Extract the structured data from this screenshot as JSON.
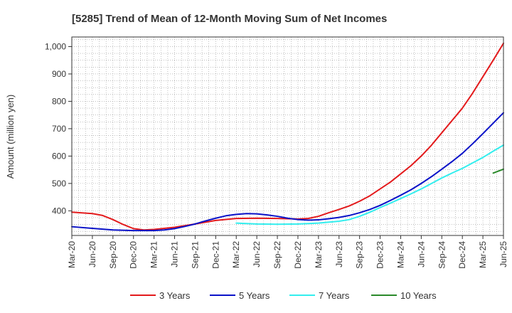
{
  "chart_data": {
    "type": "line",
    "title": "[5285]  Trend of Mean of 12-Month Moving Sum of Net Incomes",
    "xlabel": "",
    "ylabel": "Amount (million yen)",
    "ylim": [
      310,
      1035
    ],
    "yticks": [
      400,
      500,
      600,
      700,
      800,
      900,
      1000
    ],
    "ytick_labels": [
      "400",
      "500",
      "600",
      "700",
      "800",
      "900",
      "1,000"
    ],
    "x_categories": [
      "Mar-20",
      "Jun-20",
      "Sep-20",
      "Dec-20",
      "Mar-21",
      "Jun-21",
      "Sep-21",
      "Dec-21",
      "Mar-22",
      "Jun-22",
      "Sep-22",
      "Dec-22",
      "Mar-23",
      "Jun-23",
      "Sep-23",
      "Dec-23",
      "Mar-24",
      "Jun-24",
      "Sep-24",
      "Dec-24",
      "Mar-25",
      "Jun-25"
    ],
    "grid": true,
    "legend_position": "bottom",
    "series": [
      {
        "name": "3 Years",
        "color": "#e31a1c",
        "points": [
          [
            0,
            395
          ],
          [
            1,
            390
          ],
          [
            1.5,
            383
          ],
          [
            2,
            368
          ],
          [
            2.5,
            350
          ],
          [
            3,
            335
          ],
          [
            3.5,
            330
          ],
          [
            4,
            332
          ],
          [
            5,
            340
          ],
          [
            6,
            352
          ],
          [
            7,
            365
          ],
          [
            8,
            372
          ],
          [
            9,
            373
          ],
          [
            10,
            372
          ],
          [
            11,
            370
          ],
          [
            11.5,
            372
          ],
          [
            12,
            380
          ],
          [
            12.5,
            393
          ],
          [
            13,
            405
          ],
          [
            13.5,
            418
          ],
          [
            14,
            435
          ],
          [
            14.5,
            455
          ],
          [
            15,
            480
          ],
          [
            15.5,
            505
          ],
          [
            16,
            535
          ],
          [
            16.5,
            565
          ],
          [
            17,
            600
          ],
          [
            17.5,
            640
          ],
          [
            18,
            685
          ],
          [
            18.5,
            730
          ],
          [
            19,
            775
          ],
          [
            19.5,
            830
          ],
          [
            20,
            890
          ],
          [
            20.5,
            950
          ],
          [
            21,
            1012
          ]
        ]
      },
      {
        "name": "5 Years",
        "color": "#0a12c8",
        "points": [
          [
            0,
            342
          ],
          [
            1,
            336
          ],
          [
            2,
            330
          ],
          [
            3,
            328
          ],
          [
            4,
            328
          ],
          [
            4.5,
            330
          ],
          [
            5,
            335
          ],
          [
            5.5,
            343
          ],
          [
            6,
            352
          ],
          [
            6.5,
            363
          ],
          [
            7,
            373
          ],
          [
            7.5,
            382
          ],
          [
            8,
            387
          ],
          [
            8.5,
            390
          ],
          [
            9,
            389
          ],
          [
            9.5,
            385
          ],
          [
            10,
            380
          ],
          [
            10.5,
            373
          ],
          [
            11,
            368
          ],
          [
            11.5,
            366
          ],
          [
            12,
            367
          ],
          [
            12.5,
            371
          ],
          [
            13,
            376
          ],
          [
            13.5,
            383
          ],
          [
            14,
            393
          ],
          [
            14.5,
            405
          ],
          [
            15,
            420
          ],
          [
            15.5,
            438
          ],
          [
            16,
            457
          ],
          [
            16.5,
            477
          ],
          [
            17,
            500
          ],
          [
            17.5,
            525
          ],
          [
            18,
            552
          ],
          [
            18.5,
            580
          ],
          [
            19,
            610
          ],
          [
            19.5,
            645
          ],
          [
            20,
            682
          ],
          [
            20.5,
            720
          ],
          [
            21,
            758
          ]
        ]
      },
      {
        "name": "7 Years",
        "color": "#33eeee",
        "points": [
          [
            8,
            355
          ],
          [
            9,
            352
          ],
          [
            10,
            351
          ],
          [
            11,
            352
          ],
          [
            12,
            355
          ],
          [
            13,
            362
          ],
          [
            13.5,
            368
          ],
          [
            14,
            380
          ],
          [
            14.5,
            395
          ],
          [
            15,
            412
          ],
          [
            15.5,
            428
          ],
          [
            16,
            445
          ],
          [
            16.5,
            462
          ],
          [
            17,
            480
          ],
          [
            17.5,
            500
          ],
          [
            18,
            520
          ],
          [
            18.5,
            538
          ],
          [
            19,
            555
          ],
          [
            19.5,
            575
          ],
          [
            20,
            595
          ],
          [
            20.5,
            618
          ],
          [
            21,
            640
          ]
        ]
      },
      {
        "name": "10 Years",
        "color": "#2a8a2a",
        "points": [
          [
            20.5,
            538
          ],
          [
            21,
            552
          ]
        ]
      }
    ]
  }
}
